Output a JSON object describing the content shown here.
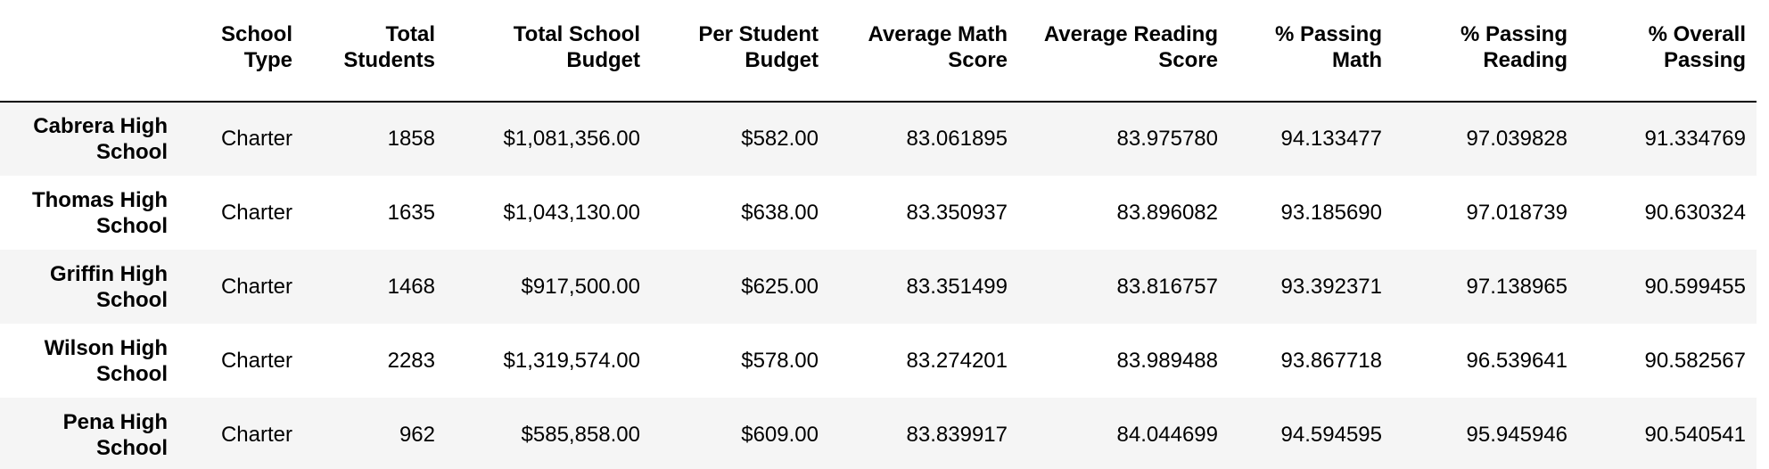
{
  "table": {
    "index_header": "",
    "columns": [
      "School Type",
      "Total Students",
      "Total School Budget",
      "Per Student Budget",
      "Average Math Score",
      "Average Reading Score",
      "% Passing Math",
      "% Passing Reading",
      "% Overall Passing"
    ],
    "rows": [
      {
        "school": "Cabrera High School",
        "cells": [
          "Charter",
          "1858",
          "$1,081,356.00",
          "$582.00",
          "83.061895",
          "83.975780",
          "94.133477",
          "97.039828",
          "91.334769"
        ]
      },
      {
        "school": "Thomas High School",
        "cells": [
          "Charter",
          "1635",
          "$1,043,130.00",
          "$638.00",
          "83.350937",
          "83.896082",
          "93.185690",
          "97.018739",
          "90.630324"
        ]
      },
      {
        "school": "Griffin High School",
        "cells": [
          "Charter",
          "1468",
          "$917,500.00",
          "$625.00",
          "83.351499",
          "83.816757",
          "93.392371",
          "97.138965",
          "90.599455"
        ]
      },
      {
        "school": "Wilson High School",
        "cells": [
          "Charter",
          "2283",
          "$1,319,574.00",
          "$578.00",
          "83.274201",
          "83.989488",
          "93.867718",
          "96.539641",
          "90.582567"
        ]
      },
      {
        "school": "Pena High School",
        "cells": [
          "Charter",
          "962",
          "$585,858.00",
          "$609.00",
          "83.839917",
          "84.044699",
          "94.594595",
          "95.945946",
          "90.540541"
        ]
      }
    ]
  },
  "colors": {
    "striped_row": "#f5f5f5",
    "plain_row": "#ffffff",
    "header_rule": "#000000",
    "text": "#000000"
  }
}
